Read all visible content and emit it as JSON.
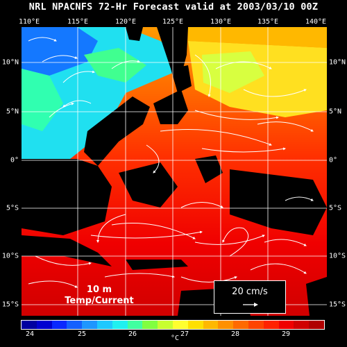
{
  "title": "NRL NPACNFS 72-Hr Forecast valid at 2003/03/10 00Z",
  "lon_labels": [
    "110°E",
    "115°E",
    "120°E",
    "125°E",
    "130°E",
    "135°E",
    "140°E"
  ],
  "lat_labels": [
    "10°N",
    "5°N",
    "0°",
    "5°S",
    "10°S",
    "15°S"
  ],
  "overlay": {
    "line1": "10 m",
    "line2": "Temp/Current"
  },
  "scale": {
    "label": "20 cm/s"
  },
  "colorbar": {
    "ticks": [
      "24",
      "25",
      "26",
      "27",
      "28",
      "29"
    ],
    "unit": "°C",
    "colors": [
      "#0000a0",
      "#0000d0",
      "#0a28ff",
      "#1460ff",
      "#1e96ff",
      "#1ec8ff",
      "#20f0f0",
      "#40ffa0",
      "#80ff40",
      "#c8ff30",
      "#ffff30",
      "#ffe000",
      "#ffb800",
      "#ff9000",
      "#ff6a00",
      "#ff4400",
      "#ff2200",
      "#f00000",
      "#d00000",
      "#b00000"
    ]
  },
  "map_layers": {
    "land_color": "#000000",
    "grid_color": "#ffffff",
    "vector_color": "#ffffff"
  }
}
